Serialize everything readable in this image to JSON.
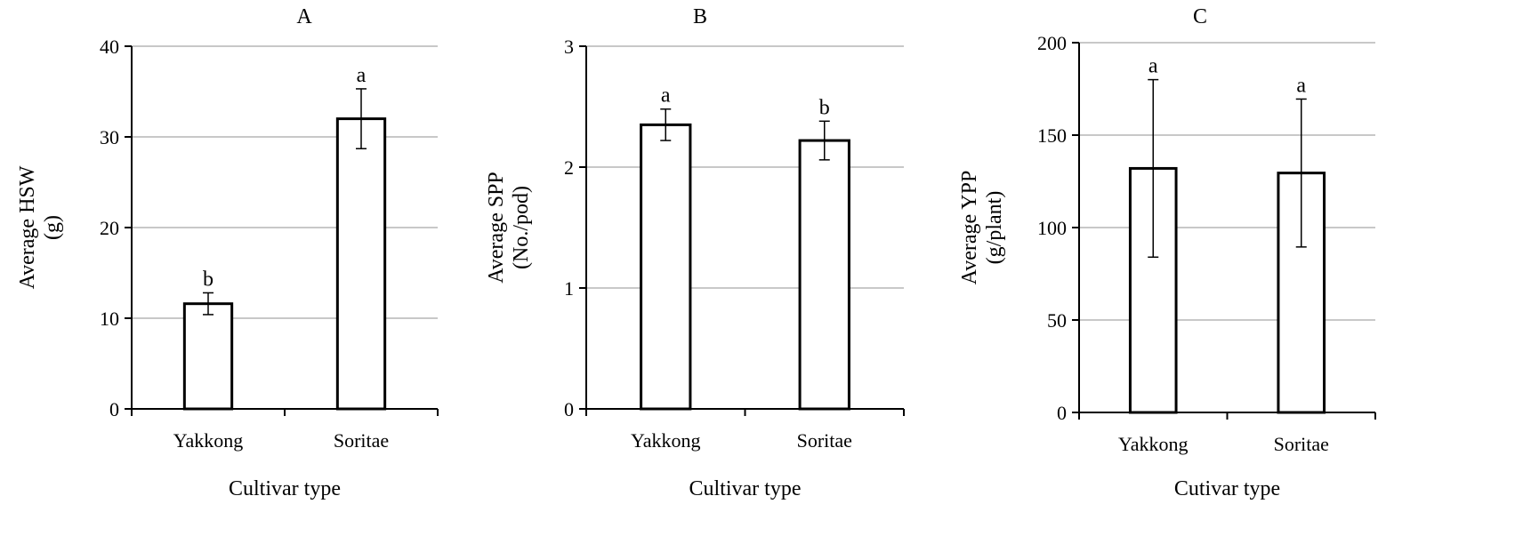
{
  "chart_data": [
    {
      "type": "bar",
      "title": "A",
      "categories": [
        "Yakkong",
        "Soritae"
      ],
      "series": [
        {
          "values": [
            11.6,
            32.0
          ],
          "error": [
            1.2,
            3.3
          ],
          "labels": [
            "b",
            "a"
          ]
        }
      ],
      "xlabel": "Cultivar type",
      "ylabel": [
        "Average HSW",
        "(g)"
      ],
      "ylim": [
        0,
        40
      ],
      "yticks": [
        0,
        10,
        20,
        30,
        40
      ],
      "grid": true
    },
    {
      "type": "bar",
      "title": "B",
      "categories": [
        "Yakkong",
        "Soritae"
      ],
      "series": [
        {
          "values": [
            2.35,
            2.22
          ],
          "error": [
            0.13,
            0.16
          ],
          "labels": [
            "a",
            "b"
          ]
        }
      ],
      "xlabel": "Cultivar type",
      "ylabel": [
        "Average SPP",
        "(No./pod)"
      ],
      "ylim": [
        0,
        3
      ],
      "yticks": [
        0,
        1,
        2,
        3
      ],
      "grid": true
    },
    {
      "type": "bar",
      "title": "C",
      "categories": [
        "Yakkong",
        "Soritae"
      ],
      "series": [
        {
          "values": [
            132,
            129.5
          ],
          "error": [
            48,
            40
          ],
          "labels": [
            "a",
            "a"
          ]
        }
      ],
      "xlabel": "Cutivar type",
      "ylabel": [
        "Average YPP",
        "(g/plant)"
      ],
      "ylim": [
        0,
        200
      ],
      "yticks": [
        0,
        50,
        100,
        150,
        200
      ],
      "grid": true
    }
  ],
  "style": {
    "bar_fill": "#ffffff",
    "bar_stroke": "#000000",
    "grid_color": "#a6a6a6",
    "axis_color": "#000000"
  }
}
